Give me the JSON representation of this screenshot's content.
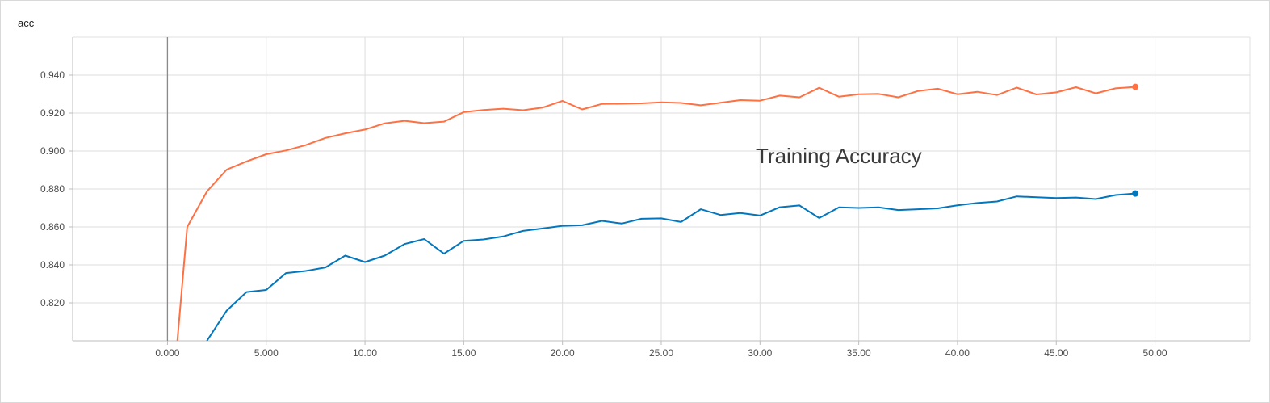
{
  "panel": {
    "title": "acc"
  },
  "chart_data": {
    "type": "line",
    "title": "",
    "annotation": "Training Accuracy",
    "xlabel": "",
    "ylabel": "",
    "xlim": [
      -4.8,
      54.8
    ],
    "ylim": [
      0.8,
      0.96
    ],
    "x_ticks": [
      "0.000",
      "5.000",
      "10.00",
      "15.00",
      "20.00",
      "25.00",
      "30.00",
      "35.00",
      "40.00",
      "45.00",
      "50.00"
    ],
    "y_ticks": [
      "0.820",
      "0.840",
      "0.860",
      "0.880",
      "0.900",
      "0.920",
      "0.940"
    ],
    "grid": true,
    "series": [
      {
        "color": "#ff7043",
        "x": [
          0.5,
          1,
          2,
          3,
          4,
          5,
          6,
          7,
          8,
          9,
          10,
          11,
          12,
          13,
          14,
          15,
          16,
          17,
          18,
          19,
          20,
          21,
          22,
          23,
          24,
          25,
          26,
          27,
          28,
          29,
          30,
          31,
          32,
          33,
          34,
          35,
          36,
          37,
          38,
          39,
          40,
          41,
          42,
          43,
          44,
          45,
          46,
          47,
          48,
          49
        ],
        "values": [
          0.8,
          0.86,
          0.8787,
          0.8902,
          0.8945,
          0.8983,
          0.9003,
          0.9031,
          0.9069,
          0.9093,
          0.9113,
          0.9146,
          0.9159,
          0.9147,
          0.9155,
          0.9205,
          0.9216,
          0.9223,
          0.9215,
          0.9229,
          0.9264,
          0.9219,
          0.9248,
          0.9249,
          0.9251,
          0.9256,
          0.9253,
          0.9241,
          0.9254,
          0.9268,
          0.9265,
          0.9292,
          0.9283,
          0.9333,
          0.9286,
          0.9299,
          0.9301,
          0.9283,
          0.9316,
          0.9328,
          0.9299,
          0.9312,
          0.9295,
          0.9334,
          0.9298,
          0.9309,
          0.9336,
          0.9304,
          0.933,
          0.9338
        ]
      },
      {
        "color": "#0277bd",
        "x": [
          2,
          3,
          4,
          5,
          6,
          7,
          8,
          9,
          10,
          11,
          12,
          13,
          14,
          15,
          16,
          17,
          18,
          19,
          20,
          21,
          22,
          23,
          24,
          25,
          26,
          27,
          28,
          29,
          30,
          31,
          32,
          33,
          34,
          35,
          36,
          37,
          38,
          39,
          40,
          41,
          42,
          43,
          44,
          45,
          46,
          47,
          48,
          49
        ],
        "values": [
          0.8,
          0.8159,
          0.8257,
          0.8268,
          0.8357,
          0.8368,
          0.8387,
          0.8449,
          0.8415,
          0.8449,
          0.851,
          0.8536,
          0.8459,
          0.8527,
          0.8534,
          0.855,
          0.8579,
          0.8592,
          0.8606,
          0.8609,
          0.8632,
          0.8618,
          0.8643,
          0.8645,
          0.8626,
          0.8693,
          0.8663,
          0.8673,
          0.866,
          0.8704,
          0.8713,
          0.8647,
          0.8703,
          0.87,
          0.8703,
          0.8689,
          0.8693,
          0.8698,
          0.8714,
          0.8726,
          0.8734,
          0.8761,
          0.8756,
          0.8752,
          0.8755,
          0.8747,
          0.8768,
          0.8776
        ]
      }
    ]
  }
}
